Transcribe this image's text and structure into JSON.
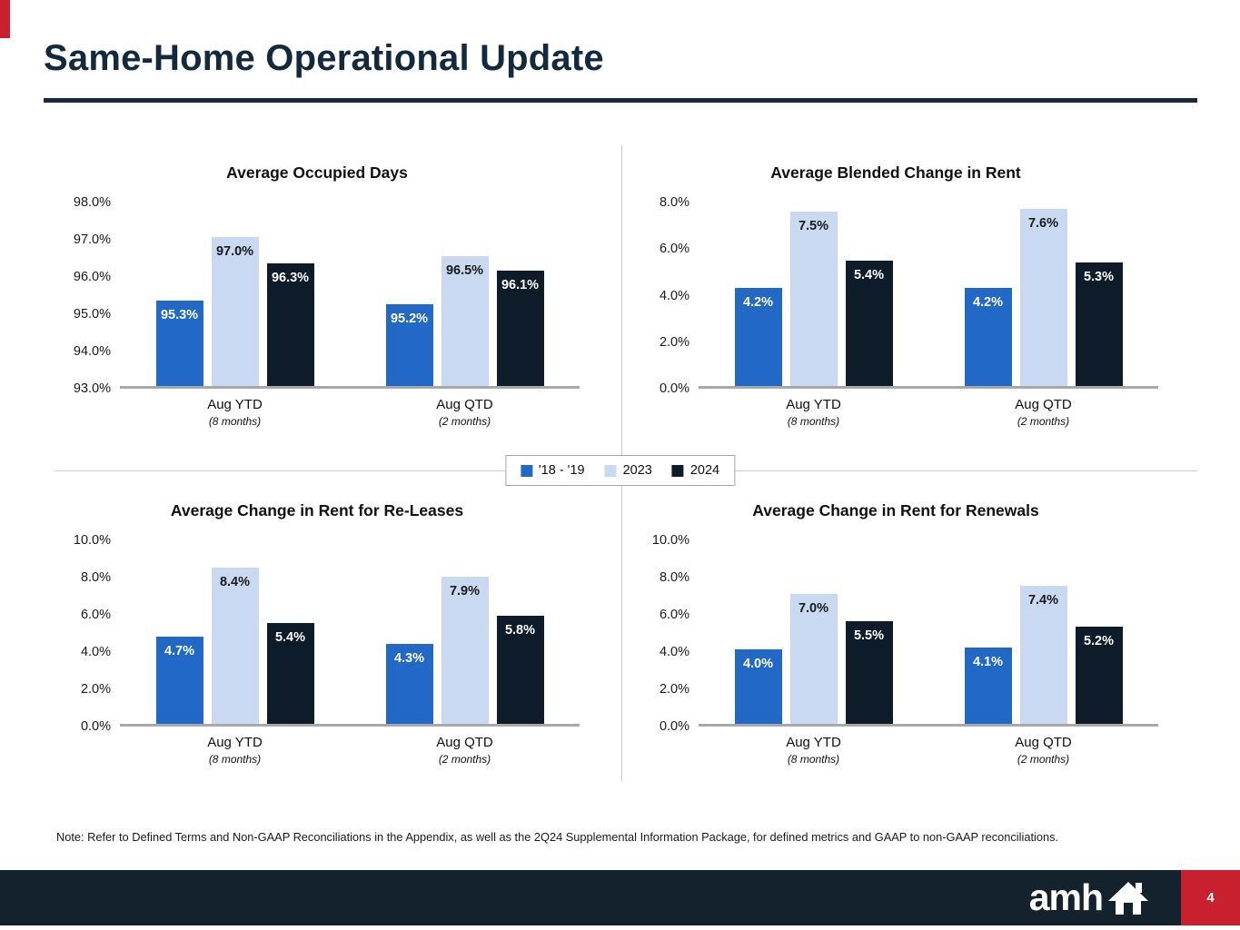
{
  "theme": {
    "series_colors": [
      "#2268C6",
      "#C9D9F2",
      "#0E1B28"
    ],
    "bar_label_colors": [
      "#FFFFFF",
      "#1A1A1A",
      "#FFFFFF"
    ],
    "red": "#C8202E",
    "navy": "#14222E"
  },
  "header": {
    "title": "Same-Home Operational Update"
  },
  "legend": {
    "items": [
      {
        "label": "'18 - '19",
        "color": "#2268C6"
      },
      {
        "label": "2023",
        "color": "#C9D9F2"
      },
      {
        "label": "2024",
        "color": "#0E1B28"
      }
    ]
  },
  "chart_data": [
    {
      "type": "bar",
      "title": "Average Occupied Days",
      "ylim": [
        93,
        98
      ],
      "ticks": [
        "98.0%",
        "97.0%",
        "96.0%",
        "95.0%",
        "94.0%",
        "93.0%"
      ],
      "categories": [
        {
          "label": "Aug YTD",
          "sub": "(8 months)"
        },
        {
          "label": "Aug QTD",
          "sub": "(2 months)"
        }
      ],
      "series": [
        {
          "name": "'18 - '19",
          "values": [
            95.3,
            95.2
          ],
          "labels": [
            "95.3%",
            "95.2%"
          ]
        },
        {
          "name": "2023",
          "values": [
            97.0,
            96.5
          ],
          "labels": [
            "97.0%",
            "96.5%"
          ]
        },
        {
          "name": "2024",
          "values": [
            96.3,
            96.1
          ],
          "labels": [
            "96.3%",
            "96.1%"
          ]
        }
      ]
    },
    {
      "type": "bar",
      "title": "Average Blended Change in Rent",
      "ylim": [
        0,
        8
      ],
      "ticks": [
        "8.0%",
        "6.0%",
        "4.0%",
        "2.0%",
        "0.0%"
      ],
      "categories": [
        {
          "label": "Aug YTD",
          "sub": "(8 months)"
        },
        {
          "label": "Aug QTD",
          "sub": "(2 months)"
        }
      ],
      "series": [
        {
          "name": "'18 - '19",
          "values": [
            4.2,
            4.2
          ],
          "labels": [
            "4.2%",
            "4.2%"
          ]
        },
        {
          "name": "2023",
          "values": [
            7.5,
            7.6
          ],
          "labels": [
            "7.5%",
            "7.6%"
          ]
        },
        {
          "name": "2024",
          "values": [
            5.4,
            5.3
          ],
          "labels": [
            "5.4%",
            "5.3%"
          ]
        }
      ]
    },
    {
      "type": "bar",
      "title": "Average Change in Rent for Re-Leases",
      "ylim": [
        0,
        10
      ],
      "ticks": [
        "10.0%",
        "8.0%",
        "6.0%",
        "4.0%",
        "2.0%",
        "0.0%"
      ],
      "categories": [
        {
          "label": "Aug YTD",
          "sub": "(8 months)"
        },
        {
          "label": "Aug QTD",
          "sub": "(2 months)"
        }
      ],
      "series": [
        {
          "name": "'18 - '19",
          "values": [
            4.7,
            4.3
          ],
          "labels": [
            "4.7%",
            "4.3%"
          ]
        },
        {
          "name": "2023",
          "values": [
            8.4,
            7.9
          ],
          "labels": [
            "8.4%",
            "7.9%"
          ]
        },
        {
          "name": "2024",
          "values": [
            5.4,
            5.8
          ],
          "labels": [
            "5.4%",
            "5.8%"
          ]
        }
      ]
    },
    {
      "type": "bar",
      "title": "Average Change in Rent for Renewals",
      "ylim": [
        0,
        10
      ],
      "ticks": [
        "10.0%",
        "8.0%",
        "6.0%",
        "4.0%",
        "2.0%",
        "0.0%"
      ],
      "categories": [
        {
          "label": "Aug YTD",
          "sub": "(8 months)"
        },
        {
          "label": "Aug QTD",
          "sub": "(2 months)"
        }
      ],
      "series": [
        {
          "name": "'18 - '19",
          "values": [
            4.0,
            4.1
          ],
          "labels": [
            "4.0%",
            "4.1%"
          ]
        },
        {
          "name": "2023",
          "values": [
            7.0,
            7.4
          ],
          "labels": [
            "7.0%",
            "7.4%"
          ]
        },
        {
          "name": "2024",
          "values": [
            5.5,
            5.2
          ],
          "labels": [
            "5.5%",
            "5.2%"
          ]
        }
      ]
    }
  ],
  "note": {
    "text": "Note: Refer to Defined Terms and Non-GAAP Reconciliations in the Appendix, as well as the 2Q24 Supplemental Information Package, for defined metrics and GAAP to non-GAAP reconciliations."
  },
  "footer": {
    "logo_text": "amh",
    "page_number": "4"
  }
}
